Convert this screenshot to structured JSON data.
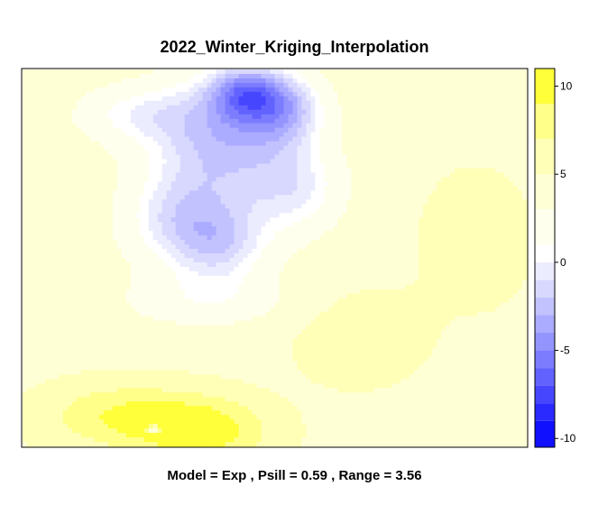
{
  "chart_data": {
    "type": "heatmap",
    "title": "2022_Winter_Kriging_Interpolation",
    "subtitle": "Model = Exp , Psill = 0.59 , Range = 3.56",
    "xlabel": "",
    "ylabel": "",
    "colorbar": {
      "ticks": [
        {
          "value": -10,
          "label": "-10"
        },
        {
          "value": -5,
          "label": "-5"
        },
        {
          "value": 0,
          "label": "0"
        },
        {
          "value": 5,
          "label": "5"
        },
        {
          "value": 10,
          "label": "10"
        }
      ],
      "range": [
        -10.5,
        11
      ],
      "bins": [
        {
          "from": -10.5,
          "to": -9,
          "color": "#1010ff"
        },
        {
          "from": -9,
          "to": -8,
          "color": "#2a2aff"
        },
        {
          "from": -8,
          "to": -7,
          "color": "#4646ff"
        },
        {
          "from": -7,
          "to": -6,
          "color": "#6262ff"
        },
        {
          "from": -6,
          "to": -5,
          "color": "#7c7cff"
        },
        {
          "from": -5,
          "to": -4,
          "color": "#9494ff"
        },
        {
          "from": -4,
          "to": -3,
          "color": "#ababff"
        },
        {
          "from": -3,
          "to": -2,
          "color": "#c2c2ff"
        },
        {
          "from": -2,
          "to": -1,
          "color": "#d8d8ff"
        },
        {
          "from": -1,
          "to": 0,
          "color": "#ececff"
        },
        {
          "from": 0,
          "to": 1,
          "color": "#ffffff"
        },
        {
          "from": 1,
          "to": 3,
          "color": "#ffffee"
        },
        {
          "from": 3,
          "to": 5,
          "color": "#ffffd6"
        },
        {
          "from": 5,
          "to": 7,
          "color": "#ffffb8"
        },
        {
          "from": 7,
          "to": 9,
          "color": "#ffff8a"
        },
        {
          "from": 9,
          "to": 11,
          "color": "#ffff3a"
        }
      ]
    },
    "field": {
      "base": 4.5,
      "sources": [
        {
          "x": 0.4,
          "y": 0.18,
          "amp": -6.5,
          "sx": 0.1,
          "sy": 0.13
        },
        {
          "x": 0.52,
          "y": 0.1,
          "amp": -5.5,
          "sx": 0.06,
          "sy": 0.07
        },
        {
          "x": 0.44,
          "y": 0.06,
          "amp": -5.5,
          "sx": 0.05,
          "sy": 0.05
        },
        {
          "x": 0.3,
          "y": 0.4,
          "amp": -4.5,
          "sx": 0.08,
          "sy": 0.1
        },
        {
          "x": 0.4,
          "y": 0.47,
          "amp": -4.5,
          "sx": 0.07,
          "sy": 0.08
        },
        {
          "x": 0.55,
          "y": 0.32,
          "amp": -4.0,
          "sx": 0.07,
          "sy": 0.09
        },
        {
          "x": 0.22,
          "y": 0.12,
          "amp": -3.5,
          "sx": 0.09,
          "sy": 0.06
        },
        {
          "x": 0.36,
          "y": 0.62,
          "amp": -2.5,
          "sx": 0.13,
          "sy": 0.05
        },
        {
          "x": 0.36,
          "y": 0.96,
          "amp": 5.5,
          "sx": 0.09,
          "sy": 0.06
        },
        {
          "x": 0.2,
          "y": 0.92,
          "amp": 4.5,
          "sx": 0.11,
          "sy": 0.06
        },
        {
          "x": 0.66,
          "y": 0.72,
          "amp": 2.0,
          "sx": 0.08,
          "sy": 0.08
        },
        {
          "x": 0.9,
          "y": 0.45,
          "amp": 0.8,
          "sx": 0.12,
          "sy": 0.2
        },
        {
          "x": 0.26,
          "y": 0.955,
          "amp": -8.0,
          "sx": 0.008,
          "sy": 0.008
        }
      ]
    }
  }
}
